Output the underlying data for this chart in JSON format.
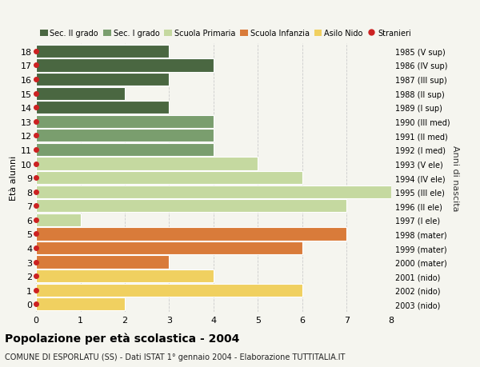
{
  "ages": [
    18,
    17,
    16,
    15,
    14,
    13,
    12,
    11,
    10,
    9,
    8,
    7,
    6,
    5,
    4,
    3,
    2,
    1,
    0
  ],
  "years": [
    "1985 (V sup)",
    "1986 (IV sup)",
    "1987 (III sup)",
    "1988 (II sup)",
    "1989 (I sup)",
    "1990 (III med)",
    "1991 (II med)",
    "1992 (I med)",
    "1993 (V ele)",
    "1994 (IV ele)",
    "1995 (III ele)",
    "1996 (II ele)",
    "1997 (I ele)",
    "1998 (mater)",
    "1999 (mater)",
    "2000 (mater)",
    "2001 (nido)",
    "2002 (nido)",
    "2003 (nido)"
  ],
  "values": [
    3,
    4,
    3,
    2,
    3,
    4,
    4,
    4,
    5,
    6,
    8,
    7,
    1,
    7,
    6,
    3,
    4,
    6,
    2
  ],
  "bar_colors": [
    "#4a6741",
    "#4a6741",
    "#4a6741",
    "#4a6741",
    "#4a6741",
    "#7a9e6e",
    "#7a9e6e",
    "#7a9e6e",
    "#c5d9a0",
    "#c5d9a0",
    "#c5d9a0",
    "#c5d9a0",
    "#c5d9a0",
    "#d97b3a",
    "#d97b3a",
    "#d97b3a",
    "#f0d060",
    "#f0d060",
    "#f0d060"
  ],
  "stranieri_color": "#cc2222",
  "legend_labels": [
    "Sec. II grado",
    "Sec. I grado",
    "Scuola Primaria",
    "Scuola Infanzia",
    "Asilo Nido",
    "Stranieri"
  ],
  "legend_colors": [
    "#4a6741",
    "#7a9e6e",
    "#c5d9a0",
    "#d97b3a",
    "#f0d060",
    "#cc2222"
  ],
  "title": "Popolazione per età scolastica - 2004",
  "subtitle": "COMUNE DI ESPORLATU (SS) - Dati ISTAT 1° gennaio 2004 - Elaborazione TUTTITALIA.IT",
  "ylabel": "Età alunni",
  "right_label": "Anni di nascita",
  "xlim": [
    0,
    8
  ],
  "xticks": [
    0,
    1,
    2,
    3,
    4,
    5,
    6,
    7,
    8
  ],
  "ylim": [
    -0.55,
    18.55
  ],
  "background_color": "#f5f5ef",
  "bar_height": 0.92,
  "stranieri_dot_x": 0.0,
  "stranieri_dot_size": 4.0
}
